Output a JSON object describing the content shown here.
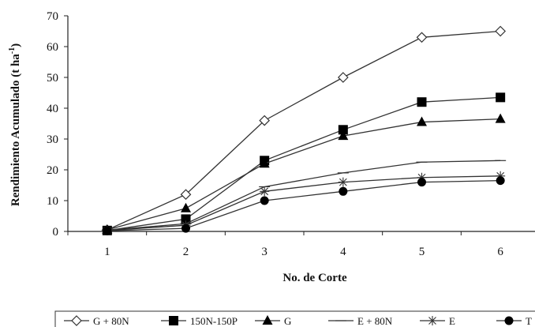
{
  "chart_data": {
    "type": "line",
    "title": "",
    "xlabel": "No. de Corte",
    "ylabel_main": "Rendimiento Acumulado (t ha",
    "ylabel_sup": "-1",
    "ylabel_close": ")",
    "x": [
      1,
      2,
      3,
      4,
      5,
      6
    ],
    "xlim": [
      0.5,
      6.5
    ],
    "ylim": [
      0,
      70
    ],
    "yticks": [
      0,
      10,
      20,
      30,
      40,
      50,
      60,
      70
    ],
    "grid": false,
    "legend_position": "bottom",
    "series": [
      {
        "name": "G + 80N",
        "marker": "diamond-open",
        "values": [
          0.5,
          12,
          36,
          50,
          63,
          65
        ]
      },
      {
        "name": "150N-150P",
        "marker": "square",
        "values": [
          0.3,
          4,
          23,
          33,
          42,
          43.5
        ]
      },
      {
        "name": "G",
        "marker": "triangle",
        "values": [
          0.5,
          7.5,
          22,
          31,
          35.5,
          36.5
        ]
      },
      {
        "name": "E + 80N",
        "marker": "dash",
        "values": [
          0.4,
          2.5,
          14.5,
          19,
          22.5,
          23
        ]
      },
      {
        "name": "E",
        "marker": "asterisk",
        "values": [
          0.3,
          2,
          13,
          16,
          17.5,
          18
        ]
      },
      {
        "name": "T",
        "marker": "circle",
        "values": [
          0.2,
          1,
          10,
          13,
          16,
          16.5
        ]
      }
    ],
    "line_color": "#333333"
  }
}
